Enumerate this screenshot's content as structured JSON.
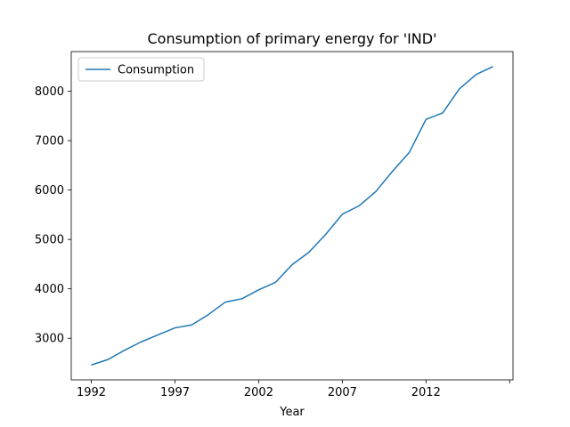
{
  "chart_data": {
    "type": "line",
    "title": "Consumption of primary energy for 'IND'",
    "xlabel": "Year",
    "ylabel": "",
    "x": [
      1992,
      1993,
      1994,
      1995,
      1996,
      1997,
      1998,
      1999,
      2000,
      2001,
      2002,
      2003,
      2004,
      2005,
      2006,
      2007,
      2008,
      2009,
      2010,
      2011,
      2012,
      2013,
      2014,
      2015,
      2016
    ],
    "series": [
      {
        "name": "Consumption",
        "color": "#1f77b4",
        "values": [
          2460,
          2570,
          2760,
          2930,
          3070,
          3210,
          3270,
          3480,
          3730,
          3800,
          3980,
          4130,
          4490,
          4740,
          5100,
          5510,
          5680,
          5970,
          6380,
          6760,
          7430,
          7560,
          8050,
          8340,
          8500
        ]
      }
    ],
    "x_ticks": [
      "1992",
      "1997",
      "2002",
      "2007",
      "2012",
      ""
    ],
    "x_tick_values": [
      1992,
      1997,
      2002,
      2007,
      2012,
      2017
    ],
    "y_ticks": [
      "3000",
      "4000",
      "5000",
      "6000",
      "7000",
      "8000"
    ],
    "y_tick_values": [
      3000,
      4000,
      5000,
      6000,
      7000,
      8000
    ],
    "xlim": [
      1990.8,
      2017.2
    ],
    "ylim": [
      2158,
      8802
    ],
    "grid": false,
    "legend_position": "upper-left"
  }
}
